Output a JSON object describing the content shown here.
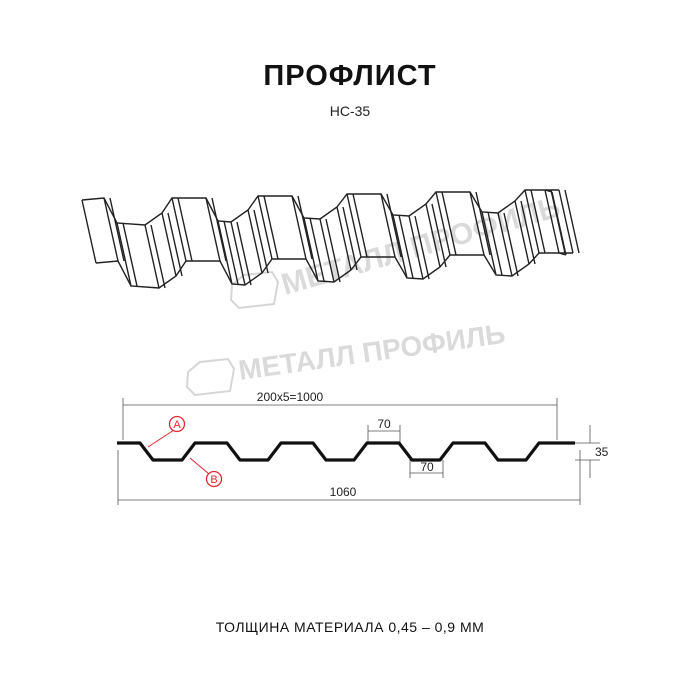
{
  "header": {
    "title": "ПРОФЛИСТ",
    "model": "НС-35"
  },
  "watermark": {
    "text": "МЕТАЛЛ ПРОФИЛЬ"
  },
  "drawing": {
    "pitch_label": "200x5=1000",
    "total_width_label": "1060",
    "top_flat_label": "70",
    "bottom_flat_label": "70",
    "height_label": "35",
    "marker_a": "A",
    "marker_b": "B",
    "marker_color": "#e0282e"
  },
  "footer": {
    "thickness": "ТОЛЩИНА МАТЕРИАЛА 0,45 – 0,9 ММ"
  }
}
